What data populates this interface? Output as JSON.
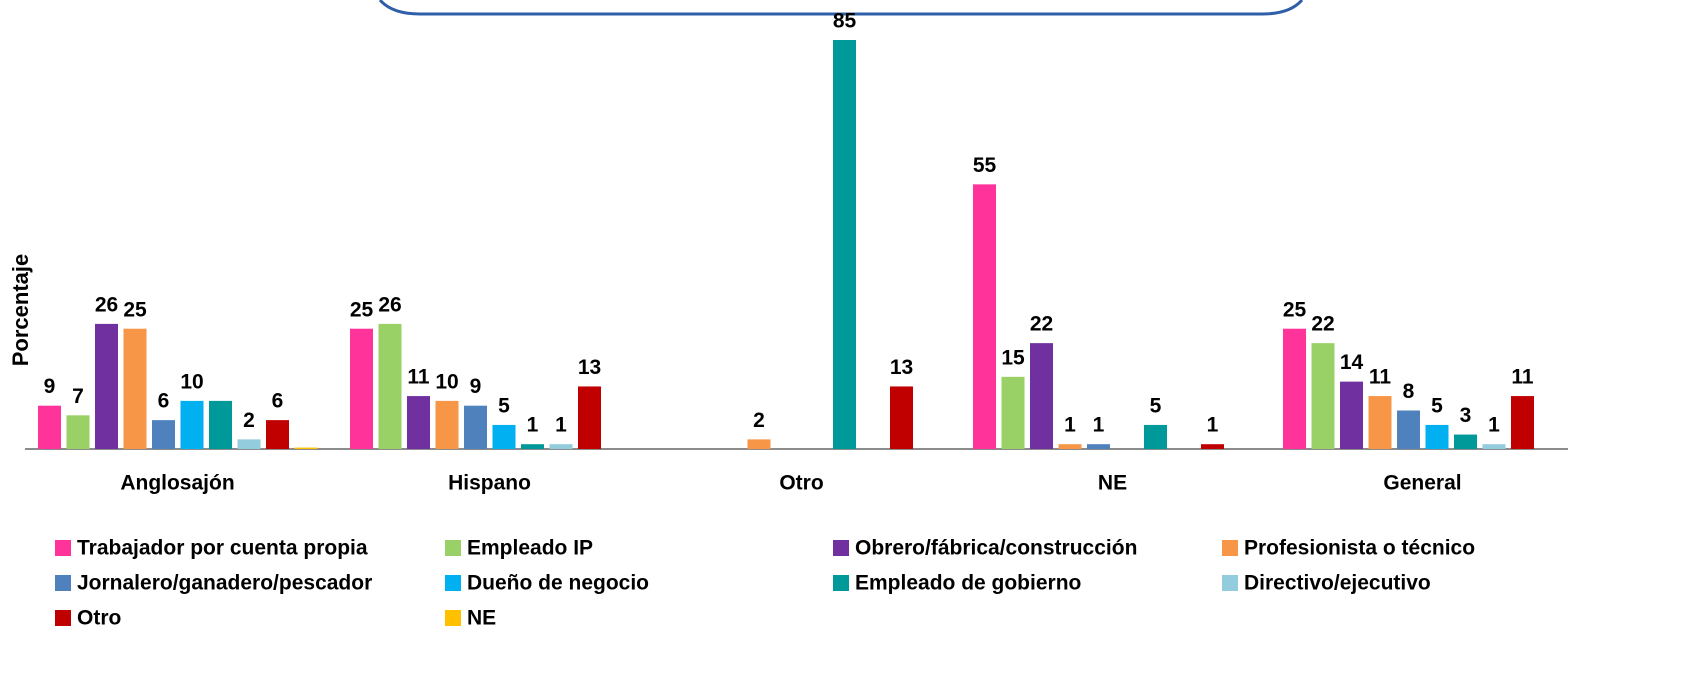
{
  "chart_data": {
    "type": "bar",
    "y_label": "Porcentaje",
    "categories": [
      "Anglosajón",
      "Hispano",
      "Otro",
      "NE",
      "General"
    ],
    "ylim": [
      0,
      85
    ],
    "series": [
      {
        "name": "Trabajador por cuenta propia",
        "color": "#ff3399",
        "values": [
          9,
          25,
          null,
          55,
          25
        ]
      },
      {
        "name": "Empleado IP",
        "color": "#99d166",
        "values": [
          7,
          26,
          null,
          15,
          22
        ]
      },
      {
        "name": "Obrero/fábrica/construcción",
        "color": "#7030a0",
        "values": [
          26,
          11,
          null,
          22,
          14
        ]
      },
      {
        "name": "Profesionista o técnico",
        "color": "#f79646",
        "values": [
          25,
          10,
          2,
          1,
          11
        ]
      },
      {
        "name": "Jornalero/ganadero/pescador",
        "color": "#4f81bd",
        "values": [
          6,
          9,
          null,
          1,
          8
        ]
      },
      {
        "name": "Dueño de negocio",
        "color": "#00b0f0",
        "values": [
          10,
          5,
          null,
          null,
          5
        ]
      },
      {
        "name": "Empleado de gobierno",
        "color": "#009999",
        "values": [
          10,
          1,
          85,
          5,
          3
        ],
        "value_labels": [
          null,
          "1",
          "85",
          "5",
          "3"
        ]
      },
      {
        "name": "Directivo/ejecutivo",
        "color": "#93cddd",
        "values": [
          2,
          1,
          null,
          null,
          1
        ]
      },
      {
        "name": "Otro",
        "color": "#c00000",
        "values": [
          6,
          13,
          13,
          1,
          11
        ]
      },
      {
        "name": "NE",
        "color": "#ffc000",
        "values": [
          0.3,
          null,
          null,
          null,
          null
        ],
        "value_labels": [
          null,
          null,
          null,
          null,
          null
        ]
      }
    ]
  }
}
